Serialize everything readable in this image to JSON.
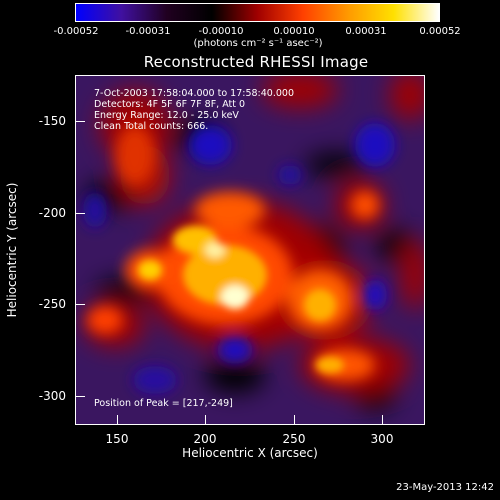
{
  "colorbar": {
    "ticks": [
      "-0.00052",
      "-0.00031",
      "-0.00010",
      "0.00010",
      "0.00031",
      "0.00052"
    ],
    "units": "(photons cm⁻² s⁻¹ asec⁻²)",
    "colors": [
      "#0000ff",
      "#4010a0",
      "#200020",
      "#000000",
      "#a00000",
      "#ff4000",
      "#ff9a00",
      "#ffe000",
      "#ffffff"
    ]
  },
  "chart_data": {
    "type": "heatmap",
    "title": "Reconstructed RHESSI Image",
    "xlabel": "Heliocentric X (arcsec)",
    "ylabel": "Heliocentric Y (arcsec)",
    "xlim": [
      130,
      320
    ],
    "ylim": [
      -320,
      -130
    ],
    "x_ticks": [
      "150",
      "200",
      "250",
      "300"
    ],
    "y_ticks": [
      "-150",
      "-200",
      "-250",
      "-300"
    ],
    "peak": [
      217,
      -249
    ],
    "colorbar_range": [
      -0.00052,
      0.00052
    ]
  },
  "info": {
    "time_range": "7-Oct-2003 17:58:04.000 to 17:58:40.000",
    "detectors": "Detectors: 4F 5F 6F 7F 8F, Att 0",
    "energy": "Energy Range: 12.0 - 25.0 keV",
    "clean": "Clean     Total counts: 666.",
    "peak_label": "Position of Peak = [217,-249]"
  },
  "timestamp": "23-May-2013 12:42"
}
